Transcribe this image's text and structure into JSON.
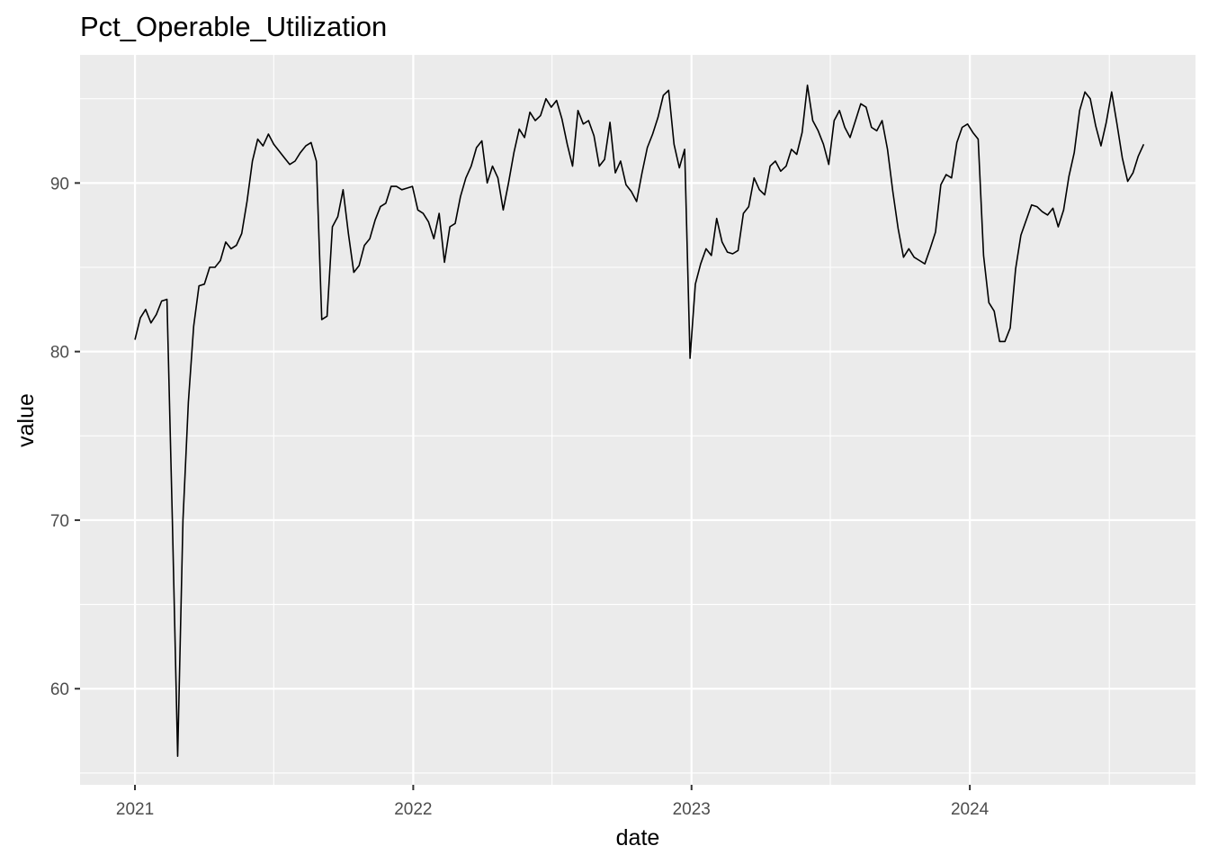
{
  "chart_data": {
    "type": "line",
    "title": "Pct_Operable_Utilization",
    "xlabel": "date",
    "ylabel": "value",
    "xlim": [
      "2020-10-21",
      "2024-10-23"
    ],
    "ylim": [
      54.3,
      97.6
    ],
    "x_ticks": [
      "2021",
      "2022",
      "2023",
      "2024"
    ],
    "y_ticks": [
      60,
      70,
      80,
      90
    ],
    "grid": true,
    "legend": "none",
    "colors": {
      "panel": "#ebebeb",
      "grid": "#ffffff",
      "line": "#000000",
      "tick_text": "#4d4d4d"
    },
    "series": [
      {
        "x": [
          "2021-01-01",
          "2021-01-08",
          "2021-01-15",
          "2021-01-22",
          "2021-01-29",
          "2021-02-05",
          "2021-02-12",
          "2021-02-19",
          "2021-02-26",
          "2021-03-05",
          "2021-03-12",
          "2021-03-19",
          "2021-03-26",
          "2021-04-02",
          "2021-04-09",
          "2021-04-16",
          "2021-04-23",
          "2021-04-30",
          "2021-05-07",
          "2021-05-14",
          "2021-05-21",
          "2021-05-28",
          "2021-06-04",
          "2021-06-11",
          "2021-06-18",
          "2021-06-25",
          "2021-07-02",
          "2021-07-09",
          "2021-07-16",
          "2021-07-23",
          "2021-07-30",
          "2021-08-06",
          "2021-08-13",
          "2021-08-20",
          "2021-08-27",
          "2021-09-03",
          "2021-09-10",
          "2021-09-17",
          "2021-09-24",
          "2021-10-01",
          "2021-10-08",
          "2021-10-15",
          "2021-10-22",
          "2021-10-29",
          "2021-11-05",
          "2021-11-12",
          "2021-11-19",
          "2021-11-26",
          "2021-12-03",
          "2021-12-10",
          "2021-12-17",
          "2021-12-24",
          "2021-12-31",
          "2022-01-07",
          "2022-01-14",
          "2022-01-21",
          "2022-01-28",
          "2022-02-04",
          "2022-02-11",
          "2022-02-18",
          "2022-02-25",
          "2022-03-04",
          "2022-03-11",
          "2022-03-18",
          "2022-03-25",
          "2022-04-01",
          "2022-04-08",
          "2022-04-15",
          "2022-04-22",
          "2022-04-29",
          "2022-05-06",
          "2022-05-13",
          "2022-05-20",
          "2022-05-27",
          "2022-06-03",
          "2022-06-10",
          "2022-06-17",
          "2022-06-24",
          "2022-07-01",
          "2022-07-08",
          "2022-07-15",
          "2022-07-22",
          "2022-07-29",
          "2022-08-05",
          "2022-08-12",
          "2022-08-19",
          "2022-08-26",
          "2022-09-02",
          "2022-09-09",
          "2022-09-16",
          "2022-09-23",
          "2022-09-30",
          "2022-10-07",
          "2022-10-14",
          "2022-10-21",
          "2022-10-28",
          "2022-11-04",
          "2022-11-11",
          "2022-11-18",
          "2022-11-25",
          "2022-12-02",
          "2022-12-09",
          "2022-12-16",
          "2022-12-23",
          "2022-12-30",
          "2023-01-06",
          "2023-01-13",
          "2023-01-20",
          "2023-01-27",
          "2023-02-03",
          "2023-02-10",
          "2023-02-17",
          "2023-02-24",
          "2023-03-03",
          "2023-03-10",
          "2023-03-17",
          "2023-03-24",
          "2023-03-31",
          "2023-04-07",
          "2023-04-14",
          "2023-04-21",
          "2023-04-28",
          "2023-05-05",
          "2023-05-12",
          "2023-05-19",
          "2023-05-26",
          "2023-06-02",
          "2023-06-09",
          "2023-06-16",
          "2023-06-23",
          "2023-06-30",
          "2023-07-07",
          "2023-07-14",
          "2023-07-21",
          "2023-07-28",
          "2023-08-04",
          "2023-08-11",
          "2023-08-18",
          "2023-08-25",
          "2023-09-01",
          "2023-09-08",
          "2023-09-15",
          "2023-09-22",
          "2023-09-29",
          "2023-10-06",
          "2023-10-13",
          "2023-10-20",
          "2023-10-27",
          "2023-11-03",
          "2023-11-10",
          "2023-11-17",
          "2023-11-24",
          "2023-12-01",
          "2023-12-08",
          "2023-12-15",
          "2023-12-22",
          "2023-12-29",
          "2024-01-05",
          "2024-01-12",
          "2024-01-19",
          "2024-01-26",
          "2024-02-02",
          "2024-02-09",
          "2024-02-16",
          "2024-02-23",
          "2024-03-01",
          "2024-03-08",
          "2024-03-15",
          "2024-03-22",
          "2024-03-29",
          "2024-04-05",
          "2024-04-12",
          "2024-04-19",
          "2024-04-26",
          "2024-05-03",
          "2024-05-10",
          "2024-05-17",
          "2024-05-24",
          "2024-05-31",
          "2024-06-07",
          "2024-06-14",
          "2024-06-21",
          "2024-06-28",
          "2024-07-05",
          "2024-07-12",
          "2024-07-19",
          "2024-07-26",
          "2024-08-02",
          "2024-08-09",
          "2024-08-16"
        ],
        "y": [
          80.7,
          82.0,
          82.5,
          81.7,
          82.2,
          83.0,
          83.1,
          70.0,
          56.0,
          70.0,
          77.0,
          81.5,
          83.9,
          84.0,
          85.0,
          85.0,
          85.4,
          86.5,
          86.1,
          86.3,
          87.0,
          88.9,
          91.3,
          92.6,
          92.2,
          92.9,
          92.3,
          91.9,
          91.5,
          91.1,
          91.3,
          91.8,
          92.2,
          92.4,
          91.3,
          81.9,
          82.1,
          87.4,
          88.0,
          89.6,
          87.0,
          84.7,
          85.1,
          86.3,
          86.7,
          87.8,
          88.6,
          88.8,
          89.8,
          89.8,
          89.6,
          89.7,
          89.8,
          88.4,
          88.2,
          87.7,
          86.7,
          88.2,
          85.3,
          87.4,
          87.6,
          89.2,
          90.3,
          91.0,
          92.1,
          92.5,
          90.0,
          91.0,
          90.3,
          88.4,
          90.0,
          91.8,
          93.2,
          92.7,
          94.2,
          93.7,
          94.0,
          95.0,
          94.5,
          94.9,
          93.8,
          92.3,
          91.0,
          94.3,
          93.5,
          93.7,
          92.8,
          91.0,
          91.4,
          93.6,
          90.6,
          91.3,
          89.9,
          89.5,
          88.9,
          90.6,
          92.1,
          92.9,
          93.9,
          95.2,
          95.5,
          92.3,
          90.9,
          92.0,
          79.6,
          84.0,
          85.2,
          86.1,
          85.7,
          87.9,
          86.5,
          85.9,
          85.8,
          86.0,
          88.2,
          88.6,
          90.3,
          89.6,
          89.3,
          91.0,
          91.3,
          90.7,
          91.0,
          92.0,
          91.7,
          93.0,
          95.8,
          93.7,
          93.1,
          92.3,
          91.1,
          93.7,
          94.3,
          93.3,
          92.7,
          93.7,
          94.7,
          94.5,
          93.3,
          93.1,
          93.7,
          92.0,
          89.5,
          87.3,
          85.6,
          86.1,
          85.6,
          85.4,
          85.2,
          86.1,
          87.1,
          89.9,
          90.5,
          90.3,
          92.4,
          93.3,
          93.5,
          93.0,
          92.6,
          85.7,
          82.9,
          82.4,
          80.6,
          80.6,
          81.4,
          84.9,
          86.9,
          87.8,
          88.7,
          88.6,
          88.3,
          88.1,
          88.5,
          87.4,
          88.4,
          90.4,
          91.8,
          94.3,
          95.4,
          95.0,
          93.4,
          92.2,
          93.6,
          95.4,
          93.5,
          91.5,
          90.1,
          90.6,
          91.6,
          92.3
        ]
      }
    ]
  }
}
